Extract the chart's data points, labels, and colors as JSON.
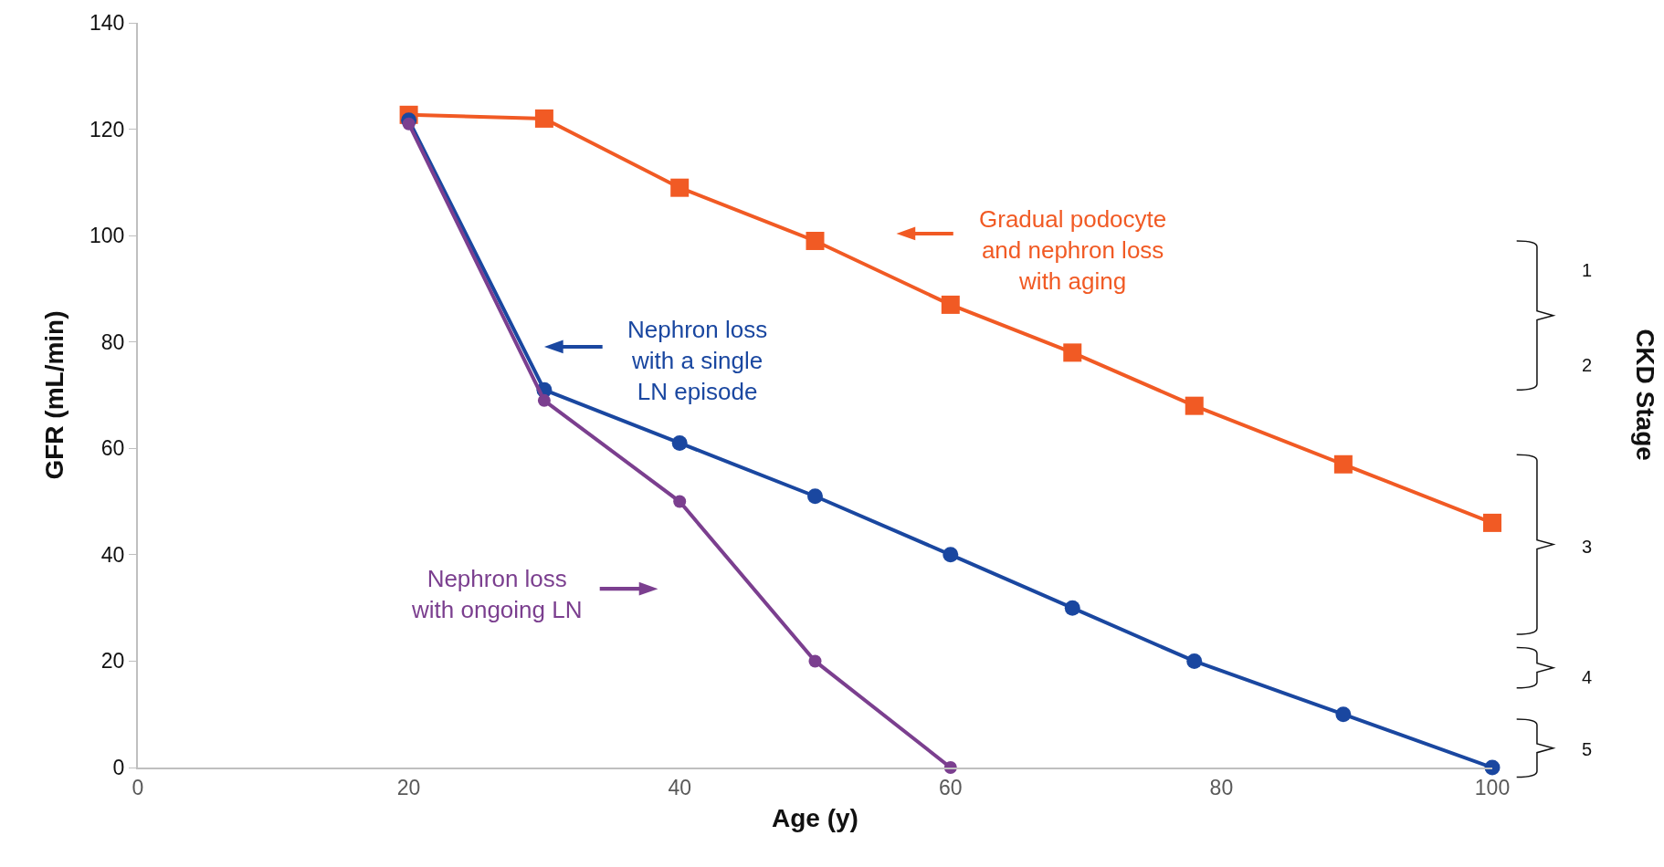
{
  "chart_data": {
    "type": "line",
    "xlabel": "Age (y)",
    "ylabel": "GFR (mL/min)",
    "xlim": [
      0,
      100
    ],
    "xticks": [
      0,
      20,
      40,
      60,
      80,
      100
    ],
    "ylim": [
      0,
      140
    ],
    "yticks": [
      0,
      20,
      40,
      60,
      80,
      100,
      120,
      140
    ],
    "series": [
      {
        "color": "#f15a24",
        "marker": "square",
        "x": [
          20,
          30,
          40,
          50,
          60,
          69,
          78,
          89,
          100
        ],
        "values": [
          122.7,
          122,
          109,
          99,
          87,
          78,
          68,
          57,
          46
        ]
      },
      {
        "color": "#1a47a0",
        "marker": "circle",
        "x": [
          20,
          30,
          40,
          50,
          60,
          69,
          78,
          89,
          100
        ],
        "values": [
          121.7,
          71,
          61,
          51,
          40,
          30,
          20,
          10,
          0
        ]
      },
      {
        "color": "#7b3f8f",
        "marker": "circle",
        "x": [
          20,
          30,
          40,
          50,
          60
        ],
        "values": [
          121,
          69,
          50,
          20,
          0
        ]
      }
    ],
    "annotations": [
      "Gradual podocyte\nand nephron loss\nwith aging",
      "Nephron loss\nwith a single\nLN episode",
      "Nephron loss\nwith ongoing LN",
      "CKD Stage",
      "1",
      "2",
      "3",
      "4",
      "5"
    ],
    "grid": false,
    "legend": false,
    "line_style": "solid"
  }
}
